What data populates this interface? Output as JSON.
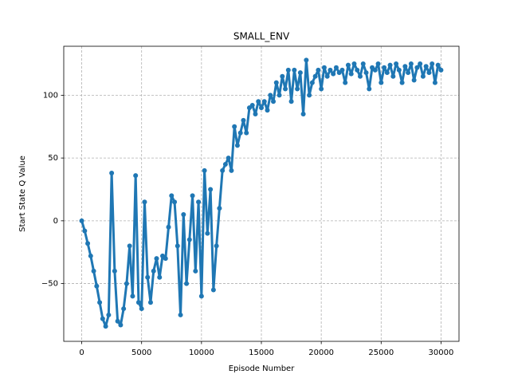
{
  "chart_data": {
    "type": "line",
    "title": "SMALL_ENV",
    "x_label": "Episode Number",
    "y_label": "Start State Q Value",
    "x": [
      0,
      250,
      500,
      750,
      1000,
      1250,
      1500,
      1750,
      2000,
      2250,
      2500,
      2750,
      3000,
      3250,
      3500,
      3750,
      4000,
      4250,
      4500,
      4750,
      5000,
      5250,
      5500,
      5750,
      6000,
      6250,
      6500,
      6750,
      7000,
      7250,
      7500,
      7750,
      8000,
      8250,
      8500,
      8750,
      9000,
      9250,
      9500,
      9750,
      10000,
      10250,
      10500,
      10750,
      11000,
      11250,
      11500,
      11750,
      12000,
      12250,
      12500,
      12750,
      13000,
      13250,
      13500,
      13750,
      14000,
      14250,
      14500,
      14750,
      15000,
      15250,
      15500,
      15750,
      16000,
      16250,
      16500,
      16750,
      17000,
      17250,
      17500,
      17750,
      18000,
      18250,
      18500,
      18750,
      19000,
      19250,
      19500,
      19750,
      20000,
      20250,
      20500,
      20750,
      21000,
      21250,
      21500,
      21750,
      22000,
      22250,
      22500,
      22750,
      23000,
      23250,
      23500,
      23750,
      24000,
      24250,
      24500,
      24750,
      25000,
      25250,
      25500,
      25750,
      26000,
      26250,
      26500,
      26750,
      27000,
      27250,
      27500,
      27750,
      28000,
      28250,
      28500,
      28750,
      29000,
      29250,
      29500,
      29750,
      30000
    ],
    "values": [
      0,
      -8,
      -18,
      -28,
      -40,
      -52,
      -65,
      -78,
      -84,
      -75,
      38,
      -40,
      -80,
      -83,
      -70,
      -50,
      -20,
      -60,
      36,
      -65,
      -70,
      15,
      -45,
      -65,
      -40,
      -30,
      -45,
      -28,
      -30,
      -5,
      20,
      15,
      -20,
      -75,
      5,
      -50,
      -15,
      20,
      -40,
      15,
      -60,
      40,
      -10,
      25,
      -55,
      -20,
      10,
      40,
      45,
      50,
      40,
      75,
      60,
      70,
      80,
      70,
      90,
      92,
      85,
      95,
      90,
      95,
      88,
      100,
      95,
      110,
      100,
      115,
      105,
      120,
      95,
      120,
      105,
      118,
      85,
      128,
      100,
      110,
      115,
      120,
      105,
      122,
      115,
      120,
      117,
      122,
      118,
      120,
      110,
      124,
      117,
      125,
      120,
      115,
      125,
      118,
      105,
      122,
      120,
      125,
      110,
      122,
      118,
      124,
      115,
      125,
      120,
      110,
      123,
      118,
      125,
      112,
      122,
      125,
      115,
      123,
      118,
      125,
      110,
      124,
      120
    ],
    "color": "#1f77b4",
    "xlim": [
      -1500,
      31500
    ],
    "xticks": [
      0,
      5000,
      10000,
      15000,
      20000,
      25000,
      30000
    ],
    "ylim": [
      -96,
      139
    ],
    "yticks": [
      {
        "value": -50,
        "label": "−50"
      },
      0,
      50,
      100
    ],
    "grid": true
  }
}
